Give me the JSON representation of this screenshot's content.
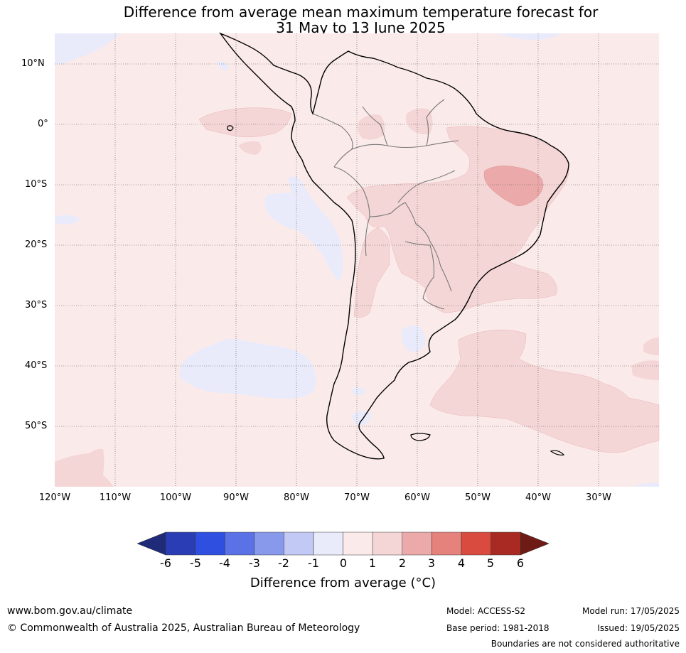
{
  "title": {
    "line1": "Difference from average mean maximum temperature forecast for",
    "line2": "31 May to 13 June 2025"
  },
  "latitude_labels": [
    "10°N",
    "0°",
    "10°S",
    "20°S",
    "30°S",
    "40°S",
    "50°S"
  ],
  "longitude_labels": [
    "120°W",
    "110°W",
    "100°W",
    "90°W",
    "80°W",
    "70°W",
    "60°W",
    "50°W",
    "40°W",
    "30°W"
  ],
  "colorbar": {
    "ticks": [
      "-6",
      "-5",
      "-4",
      "-3",
      "-2",
      "-1",
      "0",
      "1",
      "2",
      "3",
      "4",
      "5",
      "6"
    ],
    "colors": [
      "#1f2a78",
      "#2a3db5",
      "#2e4fe0",
      "#5a72e6",
      "#8899ec",
      "#c2c9f4",
      "#e9ebfb",
      "#fbeaea",
      "#f5d6d6",
      "#ebaaa9",
      "#e6827c",
      "#d94a3f",
      "#a82a22",
      "#6e1b16"
    ],
    "label": "Difference from average (°C)"
  },
  "legend_colors": {
    "weak_negative": "#e9ebfb",
    "weak_positive": "#fbeaea",
    "moderate_positive": "#f5d6d6",
    "strong_positive": "#ebaaa9"
  },
  "footer": {
    "url": "www.bom.gov.au/climate",
    "copyright": "© Commonwealth of Australia 2025, Australian Bureau of Meteorology",
    "model": "Model: ACCESS-S2",
    "base_period": "Base period: 1981-2018",
    "model_run": "Model run: 17/05/2025",
    "issued": "Issued: 19/05/2025",
    "disclaimer": "Boundaries are not considered authoritative"
  }
}
